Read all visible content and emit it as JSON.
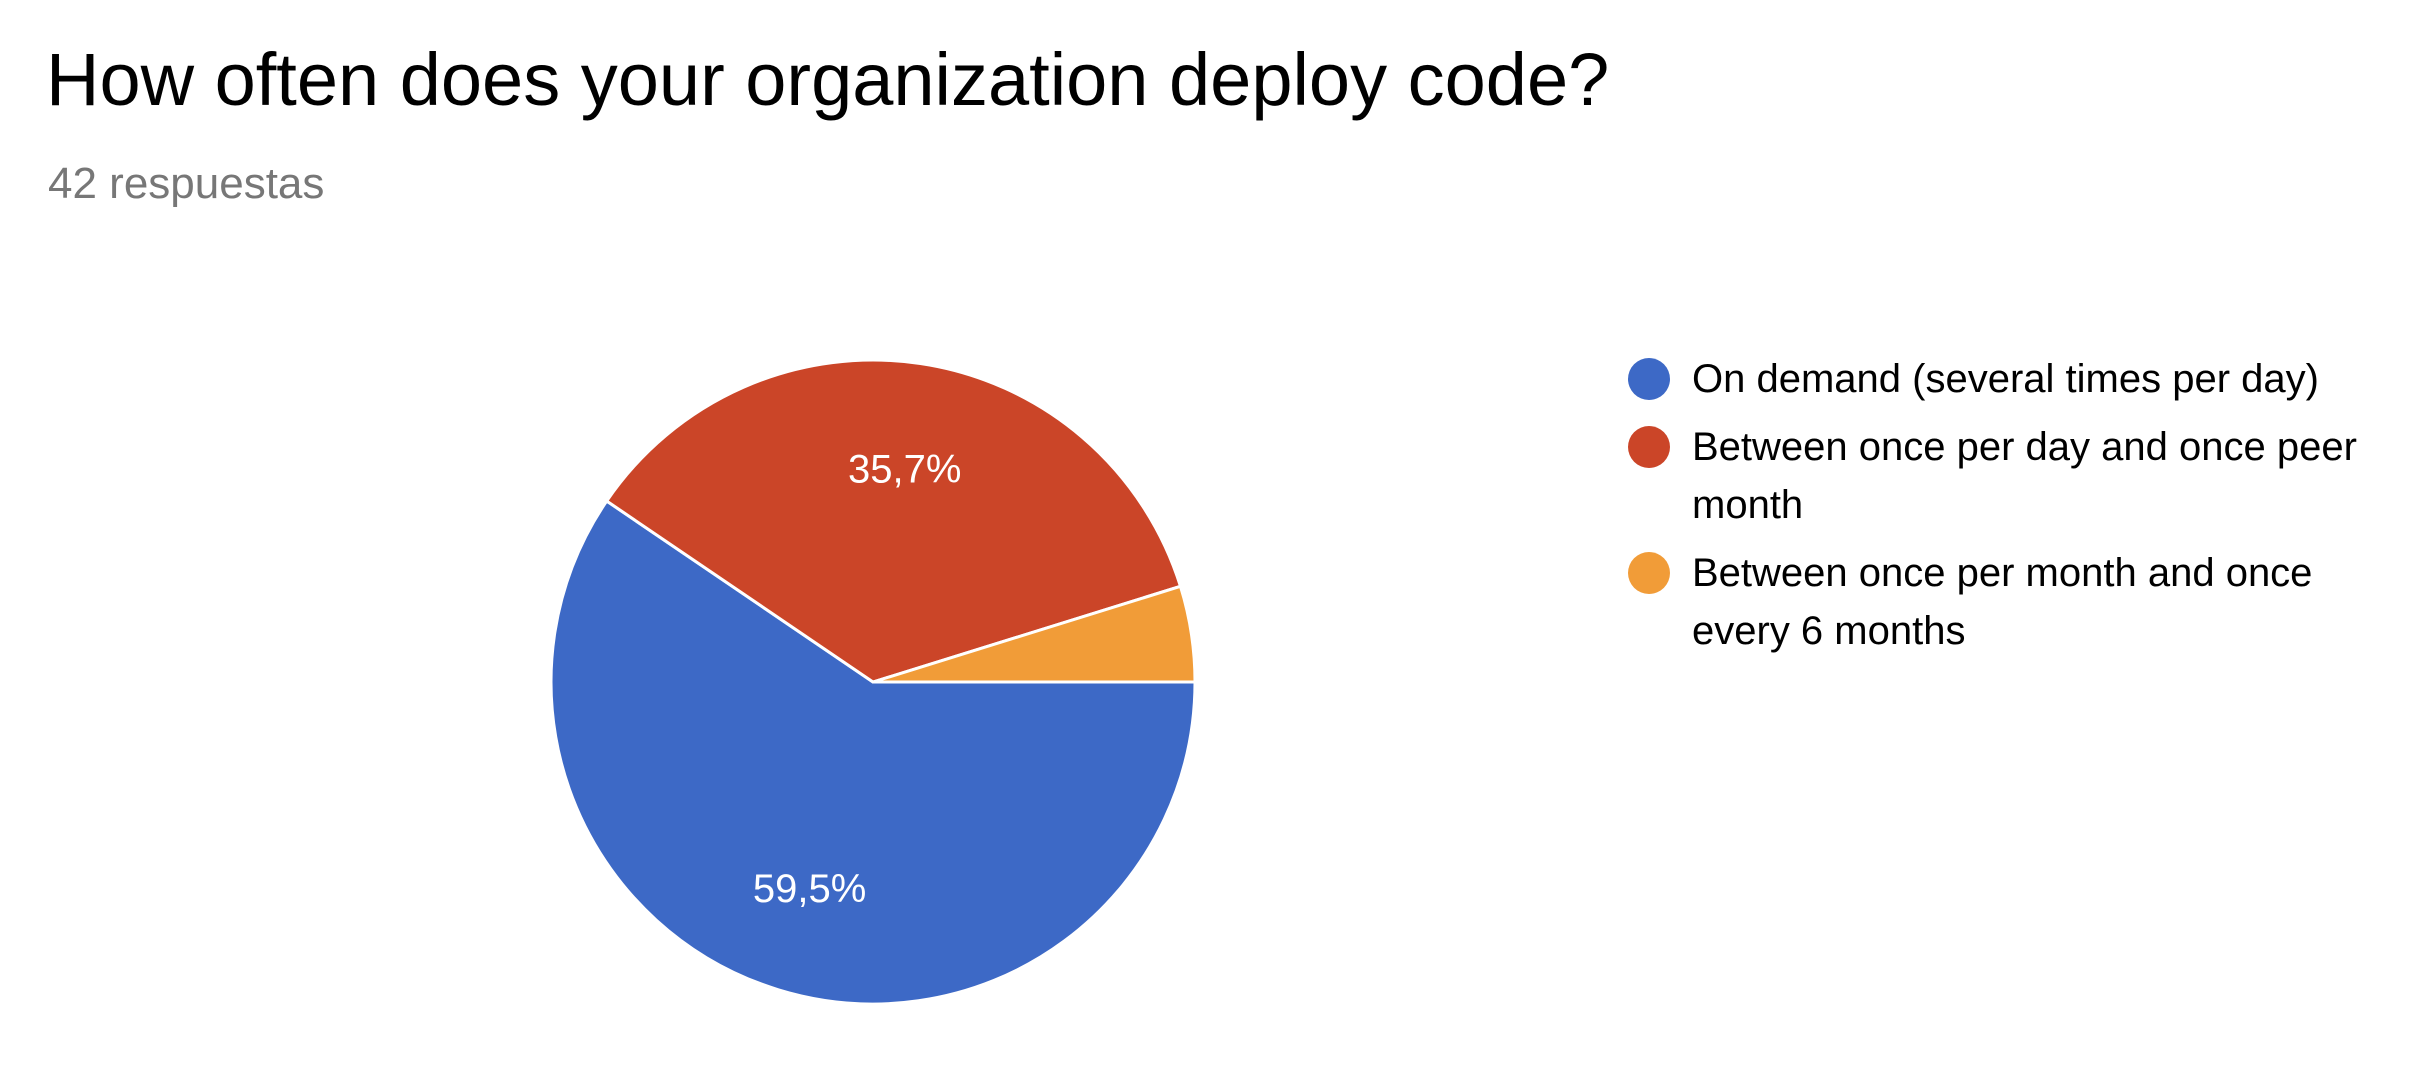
{
  "question": {
    "title": "How often does your organization deploy code?",
    "responses": "42 respuestas"
  },
  "colors": {
    "blue": "#3d69c6",
    "red": "#cb4528",
    "orange": "#f19c38",
    "title_text": "#000000",
    "subtitle_text": "#777777"
  },
  "chart_data": {
    "type": "pie",
    "title": "How often does your organization deploy code?",
    "slices": [
      {
        "label": "On demand (several times per day)",
        "value": 59.5,
        "display": "59,5%",
        "color": "#3d69c6"
      },
      {
        "label": "Between once per day and once peer month",
        "value": 35.7,
        "display": "35,7%",
        "color": "#cb4528"
      },
      {
        "label": "Between once per month and once every 6 months",
        "value": 4.8,
        "display": "",
        "color": "#f19c38"
      }
    ],
    "legend_position": "right"
  }
}
